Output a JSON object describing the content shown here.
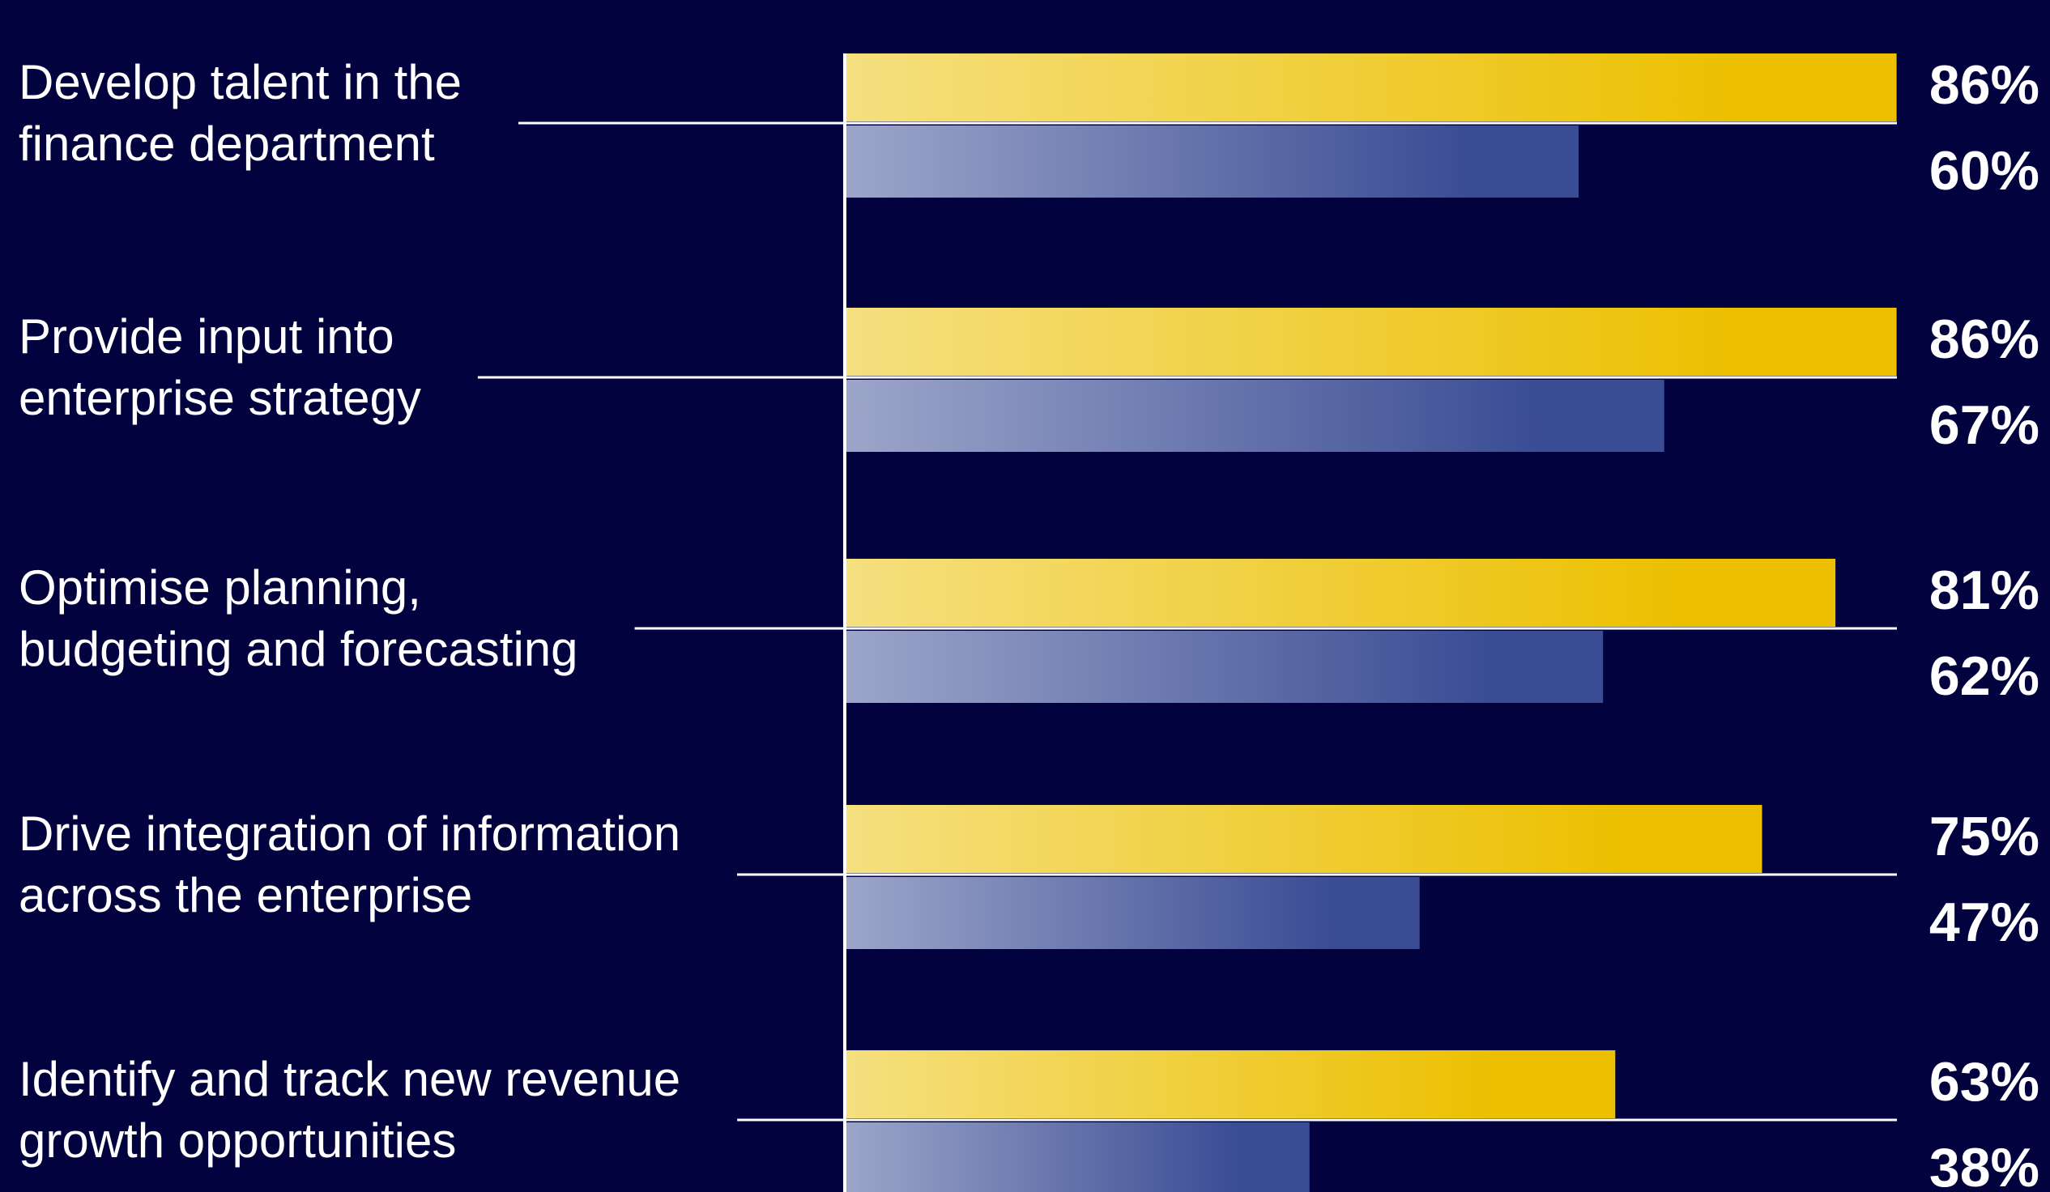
{
  "chart_data": {
    "type": "barh",
    "categories": [
      [
        "Develop talent in the",
        "finance department"
      ],
      [
        "Provide input into",
        "enterprise strategy"
      ],
      [
        "Optimise planning,",
        "budgeting and forecasting"
      ],
      [
        "Drive integration of information",
        "across the enterprise"
      ],
      [
        "Identify and track new revenue",
        "growth opportunities"
      ]
    ],
    "series": [
      {
        "color": "#ecc000",
        "values": [
          86,
          86,
          81,
          75,
          63
        ],
        "value_labels": [
          "86%",
          "86%",
          "81%",
          "75%",
          "63%"
        ]
      },
      {
        "color": "#3a4c94",
        "values": [
          60,
          67,
          62,
          47,
          38
        ],
        "value_labels": [
          "60%",
          "67%",
          "62%",
          "47%",
          "38%"
        ]
      }
    ],
    "xlim": [
      0,
      100
    ]
  }
}
